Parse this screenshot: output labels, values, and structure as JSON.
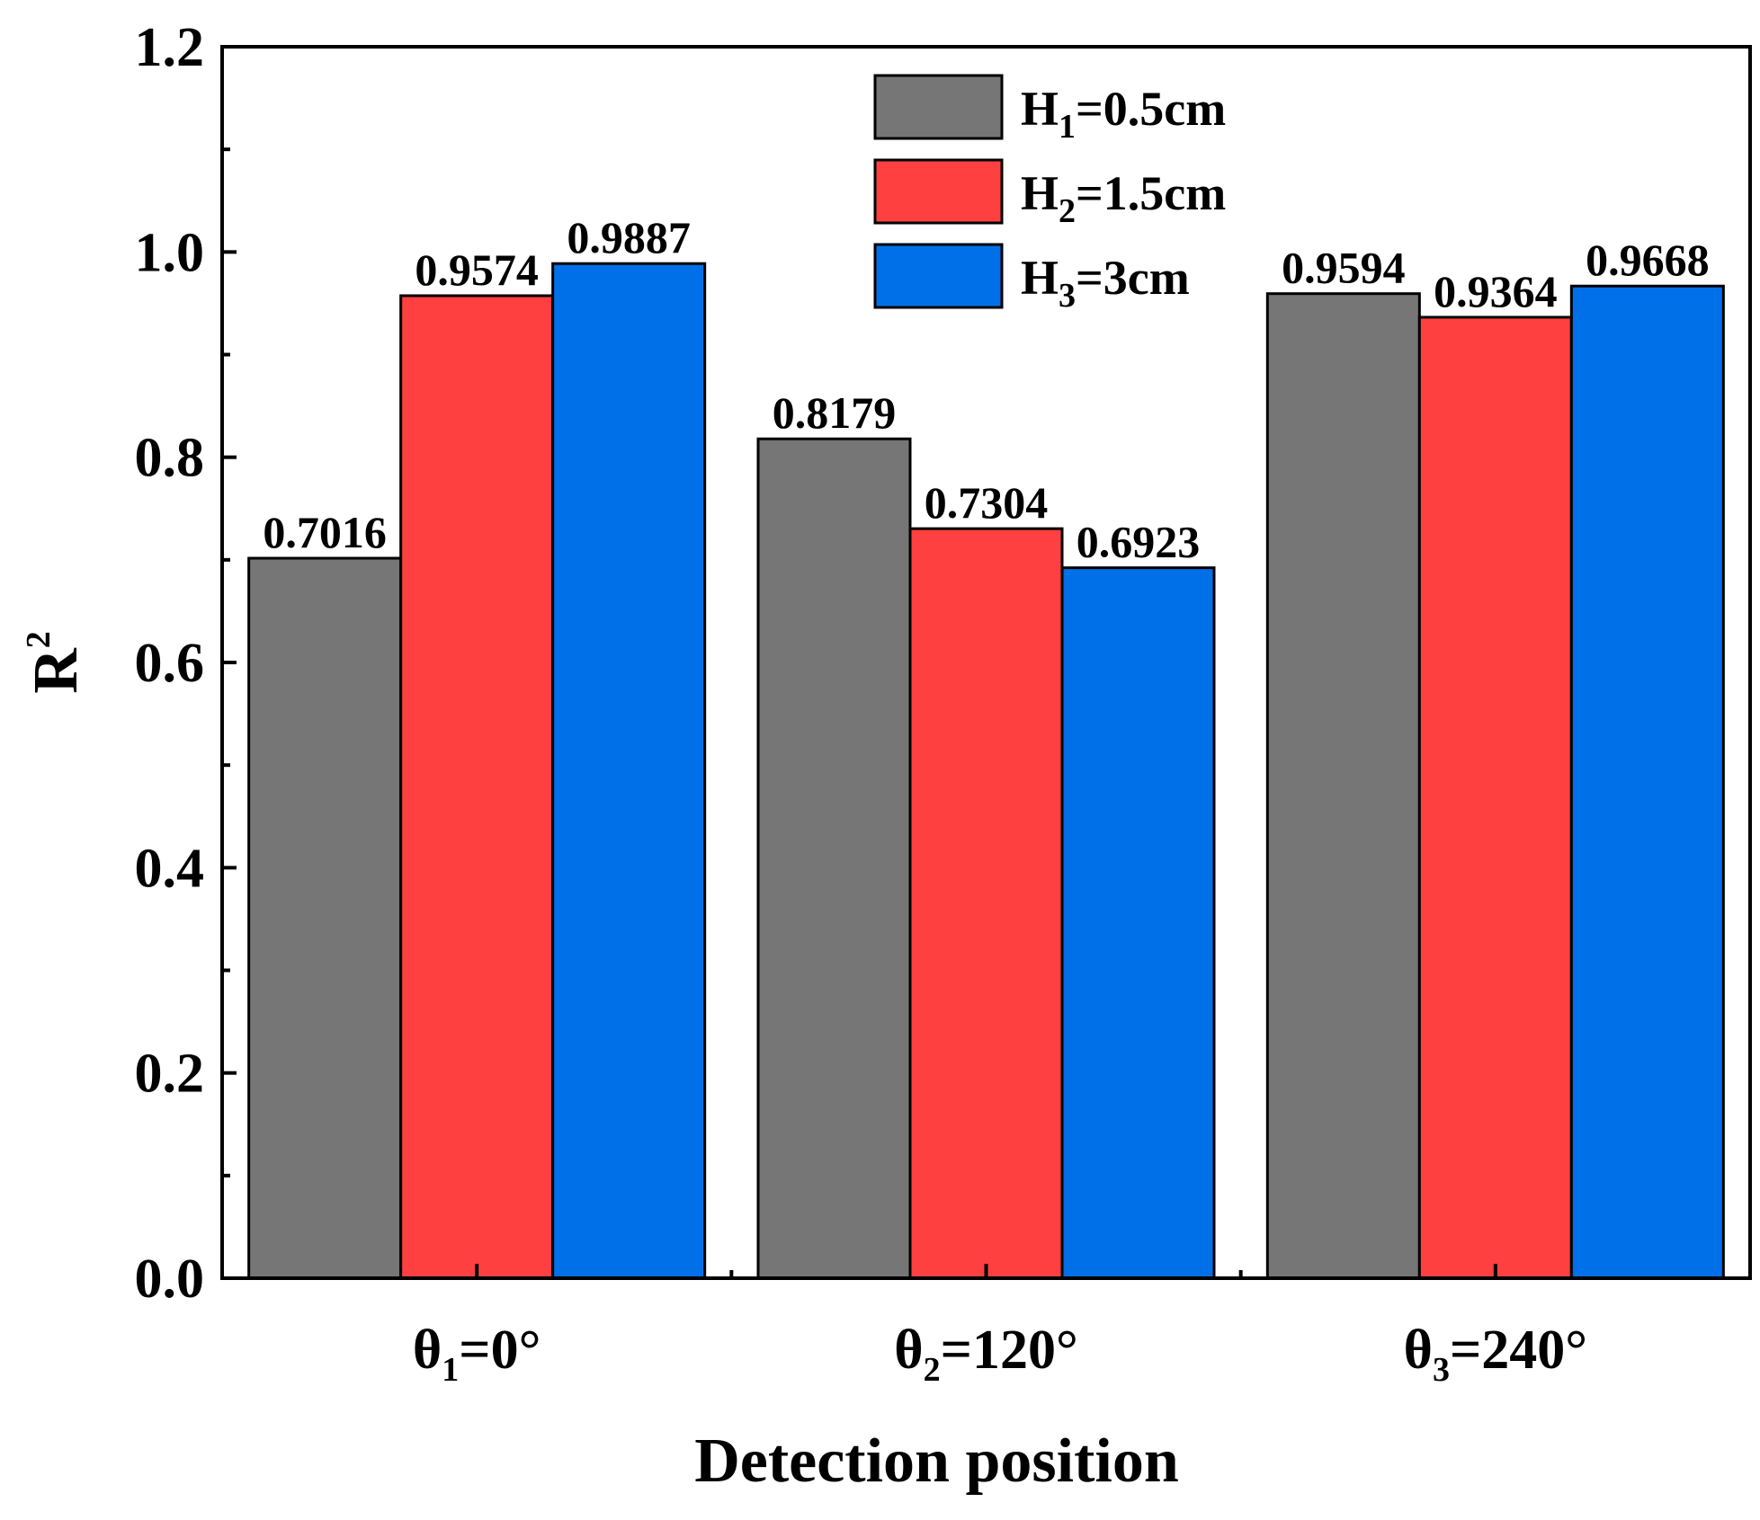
{
  "chart_data": {
    "type": "bar",
    "xlabel": "Detection position",
    "ylabel": "R",
    "ylabel_superscript": "2",
    "ylim": [
      0,
      1.2
    ],
    "yticks": [
      "0.0",
      "0.2",
      "0.4",
      "0.6",
      "0.8",
      "1.0",
      "1.2"
    ],
    "ytick_values": [
      0,
      0.2,
      0.4,
      0.6,
      0.8,
      1.0,
      1.2
    ],
    "categories": [
      {
        "main": "θ",
        "sub": "1",
        "rest": "=0°"
      },
      {
        "main": "θ",
        "sub": "2",
        "rest": "=120°"
      },
      {
        "main": "θ",
        "sub": "3",
        "rest": "=240°"
      }
    ],
    "series": [
      {
        "name": "H1=0.5cm",
        "name_main": "H",
        "name_sub": "1",
        "name_rest": "=0.5cm",
        "color": "#767676",
        "values": [
          0.7016,
          0.8179,
          0.9594
        ],
        "labels": [
          "0.7016",
          "0.8179",
          "0.9594"
        ]
      },
      {
        "name": "H2=1.5cm",
        "name_main": "H",
        "name_sub": "2",
        "name_rest": "=1.5cm",
        "color": "#ff4040",
        "values": [
          0.9574,
          0.7304,
          0.9364
        ],
        "labels": [
          "0.9574",
          "0.7304",
          "0.9364"
        ]
      },
      {
        "name": "H3=3cm",
        "name_main": "H",
        "name_sub": "3",
        "name_rest": "=3cm",
        "color": "#0070e8",
        "values": [
          0.9887,
          0.6923,
          0.9668
        ],
        "labels": [
          "0.9887",
          "0.6923",
          "0.9668"
        ]
      }
    ],
    "legend_position": "top-right"
  }
}
